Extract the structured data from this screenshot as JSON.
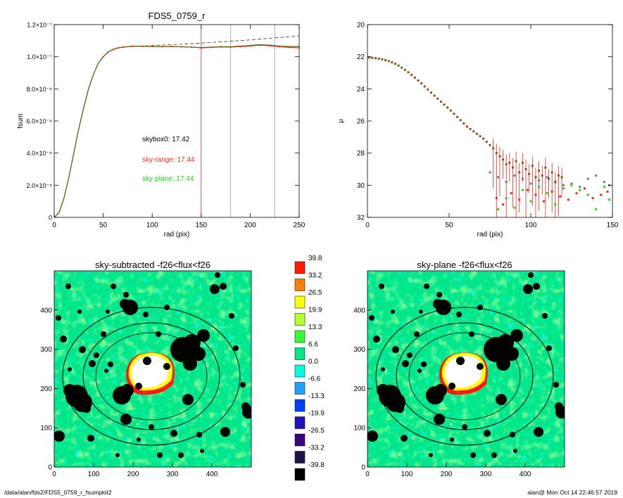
{
  "footer": {
    "left": "/data/alan/fds2/FDS5_0759_r_fsumplot2",
    "right": "alan@  Mon Oct 14 22:46:57 2019"
  },
  "colors": {
    "data": "#556b1e",
    "sky_range": "#e8281c",
    "sky_plane": "#22cc22",
    "skybox": "#777777"
  },
  "chart_data": [
    {
      "type": "line",
      "title": "FDS5_0759_r",
      "xlabel": "rad (pix)",
      "ylabel": "fsum",
      "xlim": [
        0,
        250
      ],
      "ylim": [
        0,
        1.2e-07
      ],
      "xticks": [
        "0",
        "50",
        "100",
        "150",
        "200",
        "250"
      ],
      "yticks": [
        "0",
        "2.0×10⁻⁸",
        "4.0×10⁻⁸",
        "6.0×10⁻⁸",
        "8.0×10⁻⁸",
        "1.0×10⁻⁷",
        "1.2×10⁻⁷"
      ],
      "annotations": [
        {
          "text": "skybox0: 17.42",
          "color": "#000000"
        },
        {
          "text": "sky-range: 17.44",
          "color": "#e8281c"
        },
        {
          "text": "sky-plane: 17.44",
          "color": "#22cc22"
        }
      ],
      "vlines": [
        {
          "x": 150,
          "color": "#e8281c"
        },
        {
          "x": 180,
          "color": "#999999"
        },
        {
          "x": 225,
          "color": "#999999"
        }
      ],
      "series": [
        {
          "values": [
            [
              0,
              0
            ],
            [
              5,
              3e-09
            ],
            [
              10,
              1.2e-08
            ],
            [
              15,
              2.5e-08
            ],
            [
              20,
              4e-08
            ],
            [
              25,
              5.5e-08
            ],
            [
              30,
              6.8e-08
            ],
            [
              35,
              8e-08
            ],
            [
              40,
              8.9e-08
            ],
            [
              45,
              9.6e-08
            ],
            [
              50,
              1e-07
            ],
            [
              55,
              1.03e-07
            ],
            [
              60,
              1.045e-07
            ],
            [
              65,
              1.055e-07
            ],
            [
              70,
              1.06e-07
            ],
            [
              80,
              1.065e-07
            ],
            [
              90,
              1.065e-07
            ],
            [
              100,
              1.064e-07
            ],
            [
              110,
              1.063e-07
            ],
            [
              120,
              1.064e-07
            ],
            [
              130,
              1.062e-07
            ],
            [
              140,
              1.06e-07
            ],
            [
              150,
              1.057e-07
            ],
            [
              160,
              1.06e-07
            ],
            [
              170,
              1.063e-07
            ],
            [
              180,
              1.062e-07
            ],
            [
              190,
              1.066e-07
            ],
            [
              200,
              1.07e-07
            ],
            [
              210,
              1.075e-07
            ],
            [
              220,
              1.072e-07
            ],
            [
              230,
              1.066e-07
            ],
            [
              240,
              1.064e-07
            ],
            [
              250,
              1.063e-07
            ]
          ]
        },
        {
          "values": [
            [
              0,
              0
            ],
            [
              5,
              3e-09
            ],
            [
              10,
              1.2e-08
            ],
            [
              15,
              2.5e-08
            ],
            [
              20,
              4e-08
            ],
            [
              25,
              5.5e-08
            ],
            [
              30,
              6.8e-08
            ],
            [
              35,
              8e-08
            ],
            [
              40,
              8.9e-08
            ],
            [
              45,
              9.6e-08
            ],
            [
              50,
              1e-07
            ],
            [
              55,
              1.03e-07
            ],
            [
              60,
              1.045e-07
            ],
            [
              65,
              1.055e-07
            ],
            [
              70,
              1.06e-07
            ],
            [
              80,
              1.065e-07
            ],
            [
              90,
              1.065e-07
            ],
            [
              100,
              1.064e-07
            ],
            [
              110,
              1.063e-07
            ],
            [
              120,
              1.064e-07
            ],
            [
              130,
              1.062e-07
            ],
            [
              140,
              1.06e-07
            ],
            [
              150,
              1.055e-07
            ],
            [
              160,
              1.058e-07
            ],
            [
              170,
              1.061e-07
            ],
            [
              180,
              1.06e-07
            ],
            [
              190,
              1.063e-07
            ],
            [
              200,
              1.067e-07
            ],
            [
              210,
              1.072e-07
            ],
            [
              220,
              1.068e-07
            ],
            [
              230,
              1.062e-07
            ],
            [
              240,
              1.058e-07
            ],
            [
              250,
              1.055e-07
            ]
          ]
        },
        {
          "dashed": true,
          "values": [
            [
              70,
              1.06e-07
            ],
            [
              100,
              1.07e-07
            ],
            [
              150,
              1.085e-07
            ],
            [
              200,
              1.105e-07
            ],
            [
              250,
              1.13e-07
            ]
          ]
        }
      ]
    },
    {
      "type": "scatter",
      "xlabel": "rad (pix)",
      "ylabel": "μ",
      "xlim": [
        0,
        150
      ],
      "ylim": [
        32,
        20
      ],
      "xticks": [
        "0",
        "50",
        "100",
        "150"
      ],
      "yticks": [
        "20",
        "22",
        "24",
        "26",
        "28",
        "30",
        "32"
      ],
      "series": [
        {
          "values": [
            [
              1,
              22.05
            ],
            [
              3,
              22.07
            ],
            [
              5,
              22.09
            ],
            [
              7,
              22.12
            ],
            [
              9,
              22.16
            ],
            [
              11,
              22.21
            ],
            [
              13,
              22.27
            ],
            [
              15,
              22.35
            ],
            [
              17,
              22.44
            ],
            [
              19,
              22.55
            ],
            [
              21,
              22.68
            ],
            [
              23,
              22.82
            ],
            [
              25,
              22.97
            ],
            [
              27,
              23.13
            ],
            [
              29,
              23.3
            ],
            [
              31,
              23.48
            ],
            [
              33,
              23.66
            ],
            [
              35,
              23.85
            ],
            [
              37,
              24.04
            ],
            [
              39,
              24.23
            ],
            [
              41,
              24.42
            ],
            [
              43,
              24.61
            ],
            [
              45,
              24.8
            ],
            [
              47,
              24.98
            ],
            [
              49,
              25.16
            ],
            [
              51,
              25.35
            ],
            [
              53,
              25.55
            ],
            [
              55,
              25.75
            ],
            [
              57,
              25.95
            ],
            [
              59,
              26.15
            ],
            [
              61,
              26.35
            ],
            [
              63,
              26.5
            ],
            [
              65,
              26.65
            ],
            [
              67,
              26.8
            ],
            [
              69,
              26.95
            ],
            [
              71,
              27.1
            ],
            [
              73,
              27.3
            ],
            [
              75,
              27.5
            ],
            [
              77,
              27.7
            ],
            [
              79,
              28.0
            ],
            [
              81,
              28.2
            ],
            [
              83,
              28.4
            ],
            [
              85,
              28.7
            ],
            [
              87,
              28.6
            ],
            [
              89,
              28.9
            ],
            [
              91,
              28.5
            ],
            [
              93,
              29.2
            ],
            [
              95,
              28.6
            ],
            [
              97,
              29.0
            ],
            [
              99,
              29.3
            ],
            [
              101,
              28.8
            ],
            [
              103,
              29.5
            ],
            [
              105,
              29.1
            ],
            [
              107,
              29.4
            ],
            [
              109,
              28.9
            ],
            [
              111,
              29.6
            ],
            [
              113,
              29.2
            ],
            [
              115,
              29.8
            ],
            [
              117,
              29.4
            ],
            [
              119,
              29.5
            ]
          ]
        },
        {
          "values": [
            [
              79,
              30.8
            ],
            [
              83,
              31.2
            ],
            [
              88,
              30.5
            ],
            [
              93,
              30.9
            ],
            [
              98,
              30.3
            ],
            [
              103,
              30.6
            ],
            [
              108,
              31.0
            ],
            [
              113,
              30.4
            ],
            [
              118,
              30.7
            ],
            [
              123,
              30.9
            ],
            [
              128,
              30.5
            ],
            [
              133,
              30.2
            ],
            [
              138,
              30.8
            ],
            [
              143,
              30.6
            ],
            [
              147,
              30.4
            ]
          ]
        },
        {
          "values": [
            [
              80,
              31.5
            ],
            [
              85,
              30.8
            ],
            [
              90,
              31.4
            ],
            [
              95,
              30.3
            ],
            [
              100,
              31.0
            ],
            [
              105,
              30.1
            ],
            [
              110,
              30.5
            ],
            [
              115,
              31.2
            ],
            [
              120,
              30.2
            ],
            [
              125,
              30.0
            ],
            [
              130,
              30.3
            ],
            [
              135,
              30.6
            ],
            [
              140,
              31.5
            ],
            [
              145,
              30.1
            ],
            [
              148,
              30.9
            ]
          ]
        },
        {
          "values": [
            [
              75,
              29.2
            ],
            [
              80,
              29.5
            ],
            [
              85,
              29.8
            ],
            [
              90,
              29.4
            ],
            [
              95,
              29.6
            ],
            [
              100,
              29.9
            ],
            [
              105,
              29.7
            ],
            [
              110,
              29.5
            ],
            [
              115,
              29.8
            ],
            [
              120,
              30.0
            ],
            [
              125,
              29.9
            ],
            [
              130,
              30.1
            ],
            [
              135,
              29.6
            ],
            [
              140,
              29.4
            ],
            [
              145,
              29.8
            ],
            [
              148,
              30.0
            ]
          ]
        }
      ]
    },
    {
      "type": "heatmap",
      "title": "sky-subtracted -f26<flux<f26",
      "xlim": [
        0,
        500
      ],
      "ylim": [
        0,
        500
      ],
      "xticks": [
        "0",
        "100",
        "200",
        "300",
        "400"
      ],
      "yticks": [
        "0",
        "100",
        "200",
        "300",
        "400"
      ]
    },
    {
      "type": "heatmap",
      "title": "sky-plane -f26<flux<f26",
      "xlim": [
        0,
        500
      ],
      "ylim": [
        0,
        500
      ],
      "xticks": [
        "0",
        "100",
        "200",
        "300",
        "400"
      ],
      "yticks": [
        "0",
        "100",
        "200",
        "300",
        "400"
      ]
    }
  ],
  "colorbar": {
    "levels": [
      "39.8",
      "33.2",
      "26.5",
      "19.9",
      "13.3",
      "6.6",
      "0.0",
      "-6.6",
      "-13.3",
      "-19.9",
      "-26.5",
      "-33.2",
      "-39.8"
    ],
    "colors": [
      "#ff1a00",
      "#ff8000",
      "#ffff00",
      "#b3ff33",
      "#33ff33",
      "#00e68a",
      "#00ffe0",
      "#1aa3ff",
      "#0040ff",
      "#2010c0",
      "#3c0080",
      "#20104a",
      "#000000"
    ]
  }
}
